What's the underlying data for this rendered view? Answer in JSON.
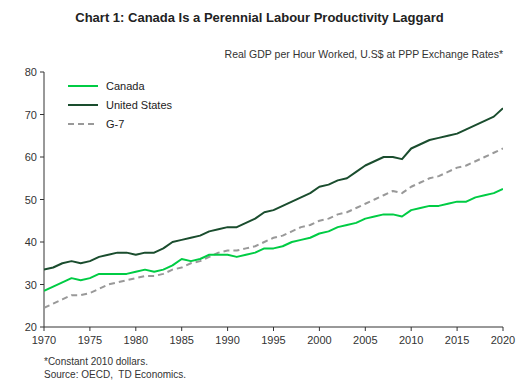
{
  "chart_data": {
    "type": "line",
    "title": "Chart 1: Canada Is a Perennial Labour Productivity Laggard",
    "subtitle": "Real GDP per Hour Worked, U.S$ at PPP Exchange Rates*",
    "annotations": [
      "*Constant 2010 dollars.",
      "Source: OECD,  TD Economics."
    ],
    "x": [
      1970,
      1971,
      1972,
      1973,
      1974,
      1975,
      1976,
      1977,
      1978,
      1979,
      1980,
      1981,
      1982,
      1983,
      1984,
      1985,
      1986,
      1987,
      1988,
      1989,
      1990,
      1991,
      1992,
      1993,
      1994,
      1995,
      1996,
      1997,
      1998,
      1999,
      2000,
      2001,
      2002,
      2003,
      2004,
      2005,
      2006,
      2007,
      2008,
      2009,
      2010,
      2011,
      2012,
      2013,
      2014,
      2015,
      2016,
      2017,
      2018,
      2019,
      2020
    ],
    "series": [
      {
        "name": "Canada",
        "color": "#00CC44",
        "line_style": "solid",
        "values": [
          28.5,
          29.5,
          30.5,
          31.5,
          31.0,
          31.5,
          32.5,
          32.5,
          32.5,
          32.5,
          33.0,
          33.5,
          33.0,
          33.5,
          34.5,
          36.0,
          35.5,
          36.0,
          37.0,
          37.0,
          37.0,
          36.5,
          37.0,
          37.5,
          38.5,
          38.5,
          39.0,
          40.0,
          40.5,
          41.0,
          42.0,
          42.5,
          43.5,
          44.0,
          44.5,
          45.5,
          46.0,
          46.5,
          46.5,
          46.0,
          47.5,
          48.0,
          48.5,
          48.5,
          49.0,
          49.5,
          49.5,
          50.5,
          51.0,
          51.5,
          52.5
        ]
      },
      {
        "name": "United States",
        "color": "#1A4D2E",
        "line_style": "solid",
        "values": [
          33.5,
          34.0,
          35.0,
          35.5,
          35.0,
          35.5,
          36.5,
          37.0,
          37.5,
          37.5,
          37.0,
          37.5,
          37.5,
          38.5,
          40.0,
          40.5,
          41.0,
          41.5,
          42.5,
          43.0,
          43.5,
          43.5,
          44.5,
          45.5,
          47.0,
          47.5,
          48.5,
          49.5,
          50.5,
          51.5,
          53.0,
          53.5,
          54.5,
          55.0,
          56.5,
          58.0,
          59.0,
          60.0,
          60.0,
          59.5,
          62.0,
          63.0,
          64.0,
          64.5,
          65.0,
          65.5,
          66.5,
          67.5,
          68.5,
          69.5,
          71.5
        ]
      },
      {
        "name": "G-7",
        "color": "#999999",
        "line_style": "dashed",
        "values": [
          24.5,
          25.5,
          26.5,
          27.5,
          27.5,
          28.0,
          29.0,
          30.0,
          30.5,
          31.0,
          31.5,
          32.0,
          32.0,
          32.5,
          33.5,
          34.0,
          35.0,
          35.5,
          36.5,
          37.5,
          38.0,
          38.0,
          38.5,
          39.0,
          40.0,
          41.0,
          41.5,
          42.5,
          43.5,
          44.0,
          45.0,
          45.5,
          46.5,
          47.0,
          48.0,
          49.0,
          50.0,
          51.0,
          52.0,
          51.5,
          53.0,
          54.0,
          55.0,
          55.5,
          56.5,
          57.5,
          58.0,
          59.0,
          60.0,
          61.0,
          62.0
        ]
      }
    ],
    "xlim": [
      1970,
      2020
    ],
    "ylim": [
      20,
      80
    ],
    "xticks": [
      1970,
      1975,
      1980,
      1985,
      1990,
      1995,
      2000,
      2005,
      2010,
      2015,
      2020
    ],
    "yticks": [
      20,
      30,
      40,
      50,
      60,
      70,
      80
    ],
    "grid": false,
    "legend": "upper left"
  }
}
